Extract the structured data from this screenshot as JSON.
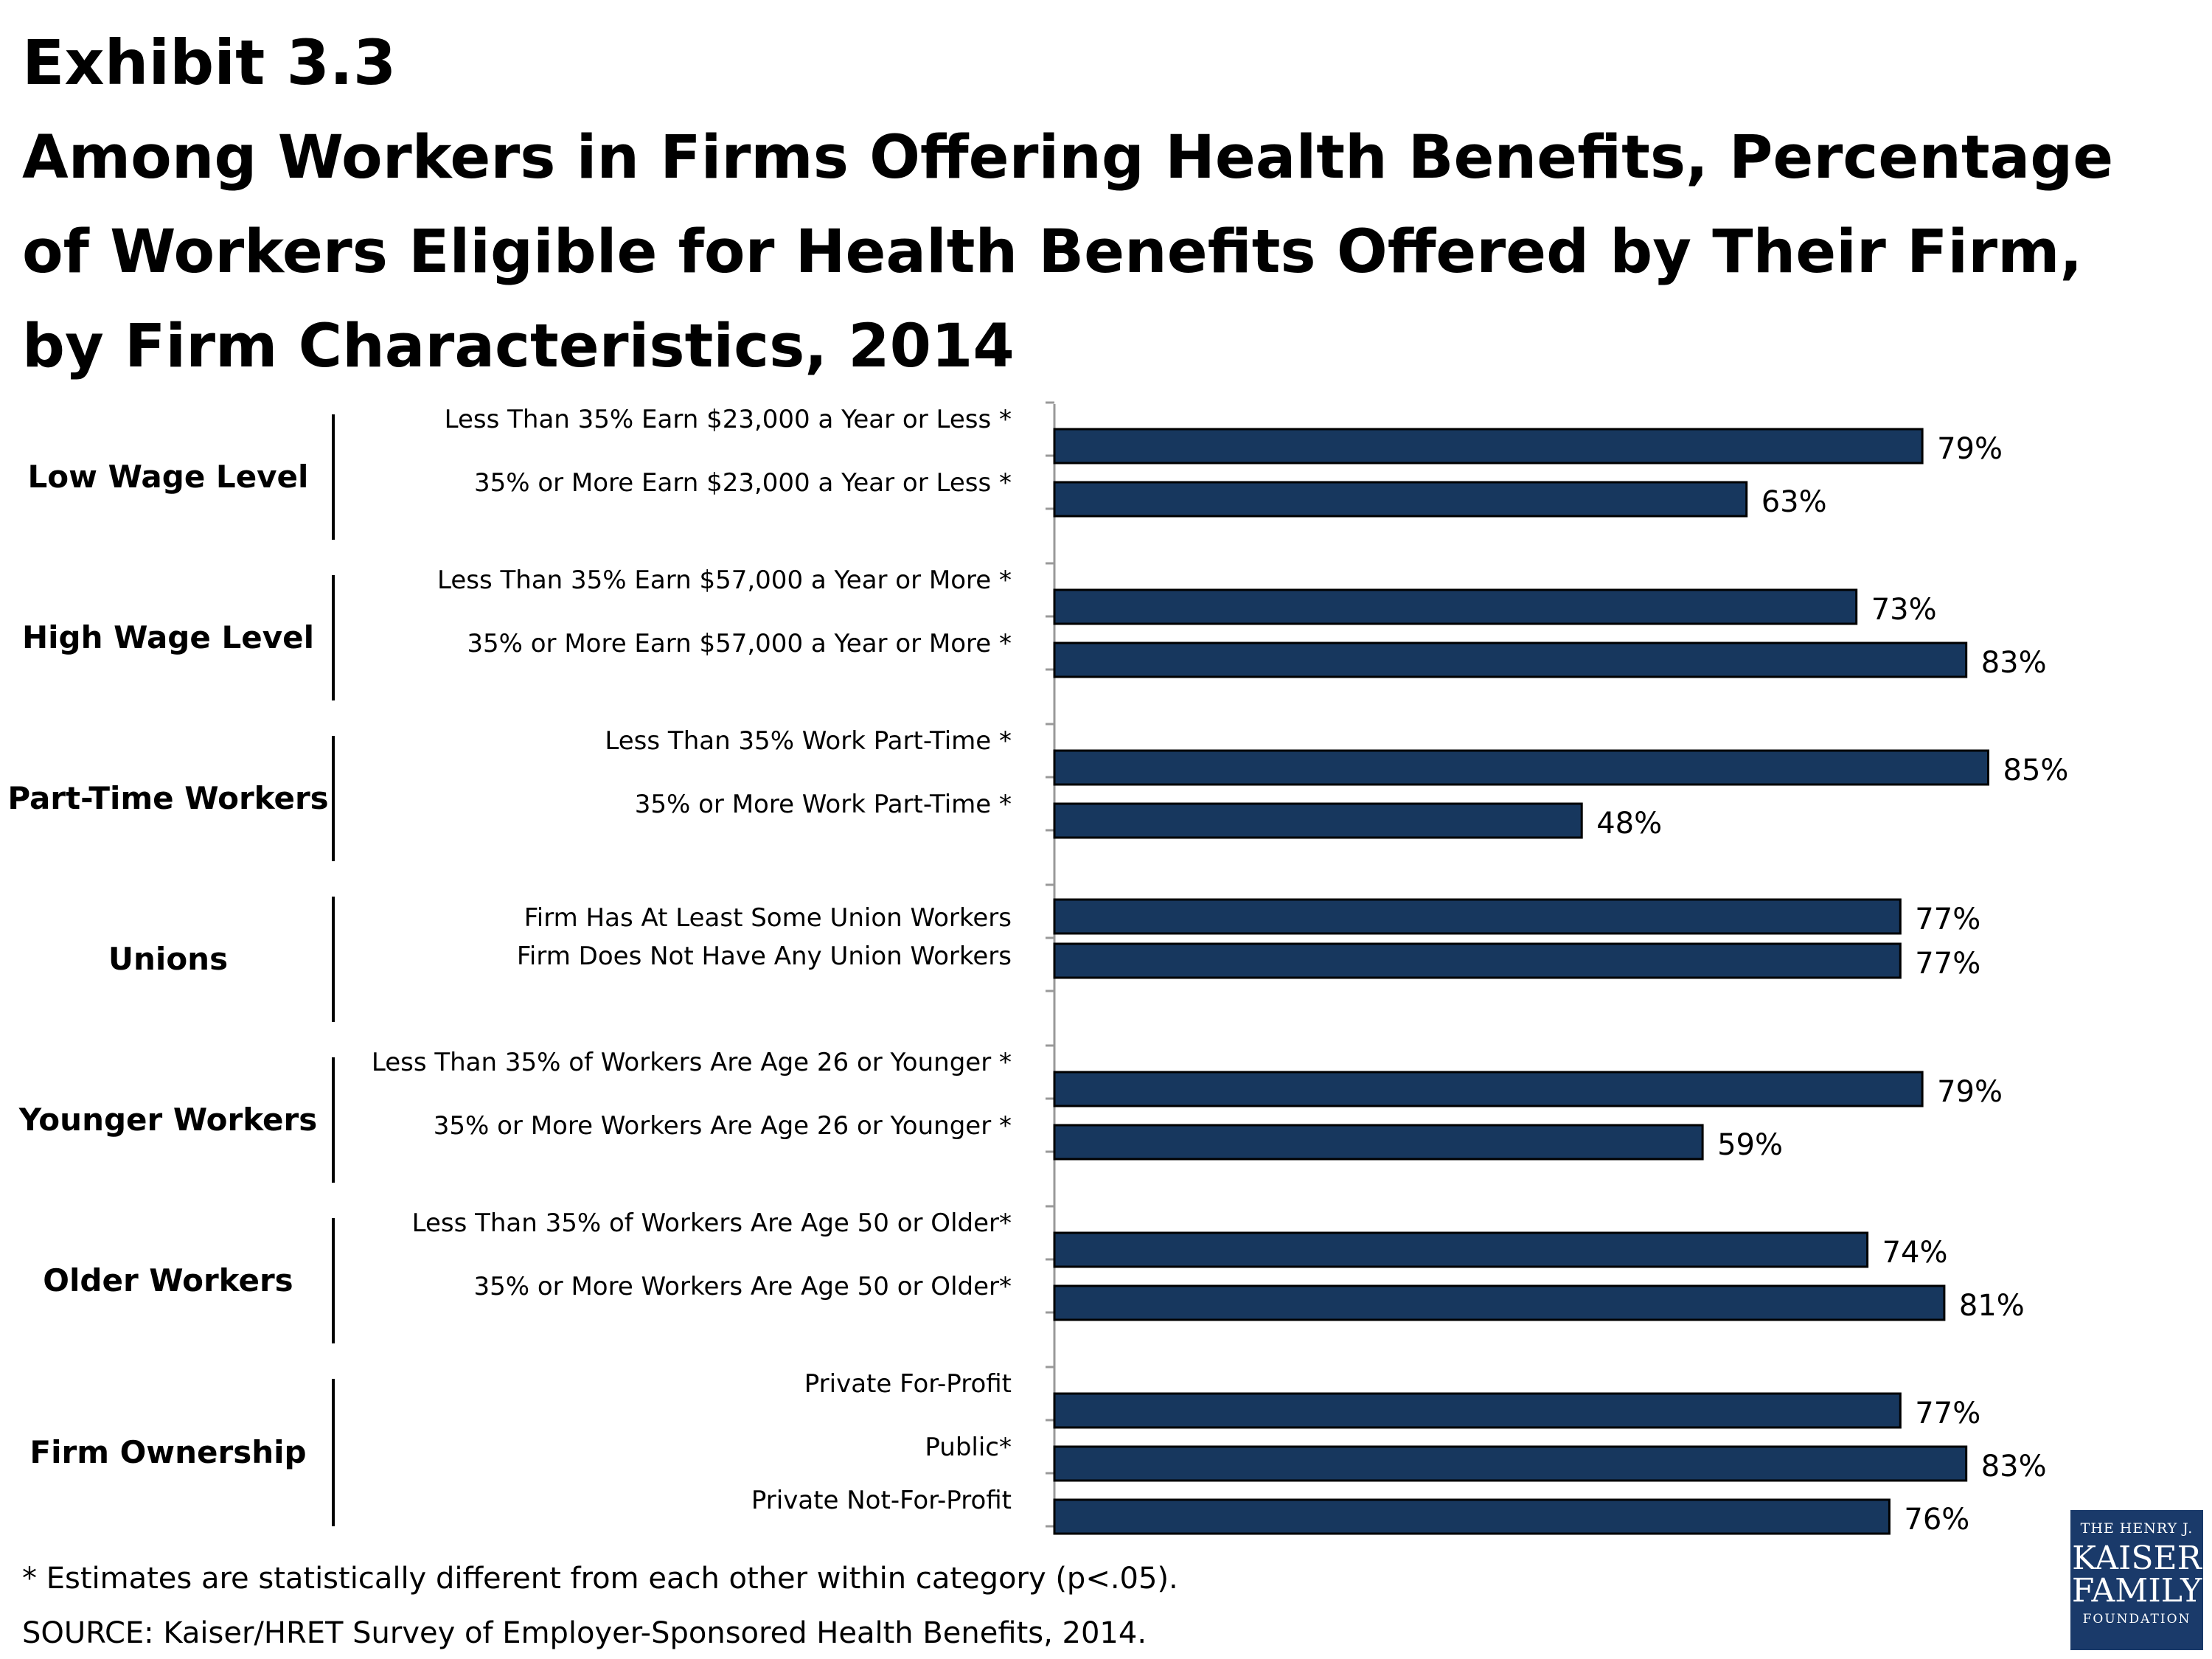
{
  "header": {
    "exhibit": "Exhibit 3.3",
    "title": "Among Workers in Firms Offering Health Benefits, Percentage of Workers Eligible for Health Benefits Offered by Their Firm, by Firm Characteristics, 2014"
  },
  "chart_data": {
    "type": "bar",
    "orientation": "horizontal",
    "bar_color": "#17375e",
    "value_suffix": "%",
    "groups": [
      {
        "name": "Low Wage Level",
        "bars": [
          {
            "label": "Less Than 35% Earn $23,000 a Year or Less *",
            "value": 79
          },
          {
            "label": "35% or More Earn $23,000 a Year or Less *",
            "value": 63
          }
        ]
      },
      {
        "name": "High Wage Level",
        "bars": [
          {
            "label": "Less Than 35% Earn $57,000 a Year or More *",
            "value": 73
          },
          {
            "label": "35% or More Earn $57,000 a Year or More *",
            "value": 83
          }
        ]
      },
      {
        "name": "Part-Time Workers",
        "bars": [
          {
            "label": "Less Than 35% Work Part-Time *",
            "value": 85
          },
          {
            "label": "35% or More Work Part-Time *",
            "value": 48
          }
        ]
      },
      {
        "name": "Unions",
        "bars": [
          {
            "label": "Firm Has At Least Some Union Workers",
            "value": 77
          },
          {
            "label": "Firm Does Not Have Any Union Workers",
            "value": 77
          }
        ]
      },
      {
        "name": "Younger Workers",
        "bars": [
          {
            "label": "Less Than 35% of Workers Are Age 26 or Younger *",
            "value": 79
          },
          {
            "label": "35% or More Workers Are Age 26 or Younger *",
            "value": 59
          }
        ]
      },
      {
        "name": "Older Workers",
        "bars": [
          {
            "label": "Less Than 35% of Workers Are Age 50 or Older*",
            "value": 74
          },
          {
            "label": "35% or More Workers Are Age 50 or Older*",
            "value": 81
          }
        ]
      },
      {
        "name": "Firm Ownership",
        "bars": [
          {
            "label": "Private For-Profit",
            "value": 77
          },
          {
            "label": "Public*",
            "value": 83
          },
          {
            "label": "Private Not-For-Profit",
            "value": 76
          }
        ]
      }
    ]
  },
  "footnote": "* Estimates are statistically different from each other within category (p<.05).",
  "source": "SOURCE: Kaiser/HRET Survey of Employer-Sponsored Health Benefits, 2014.",
  "logo": {
    "line1": "THE HENRY J.",
    "line2": "KAISER",
    "line3": "FAMILY",
    "line4": "FOUNDATION"
  }
}
